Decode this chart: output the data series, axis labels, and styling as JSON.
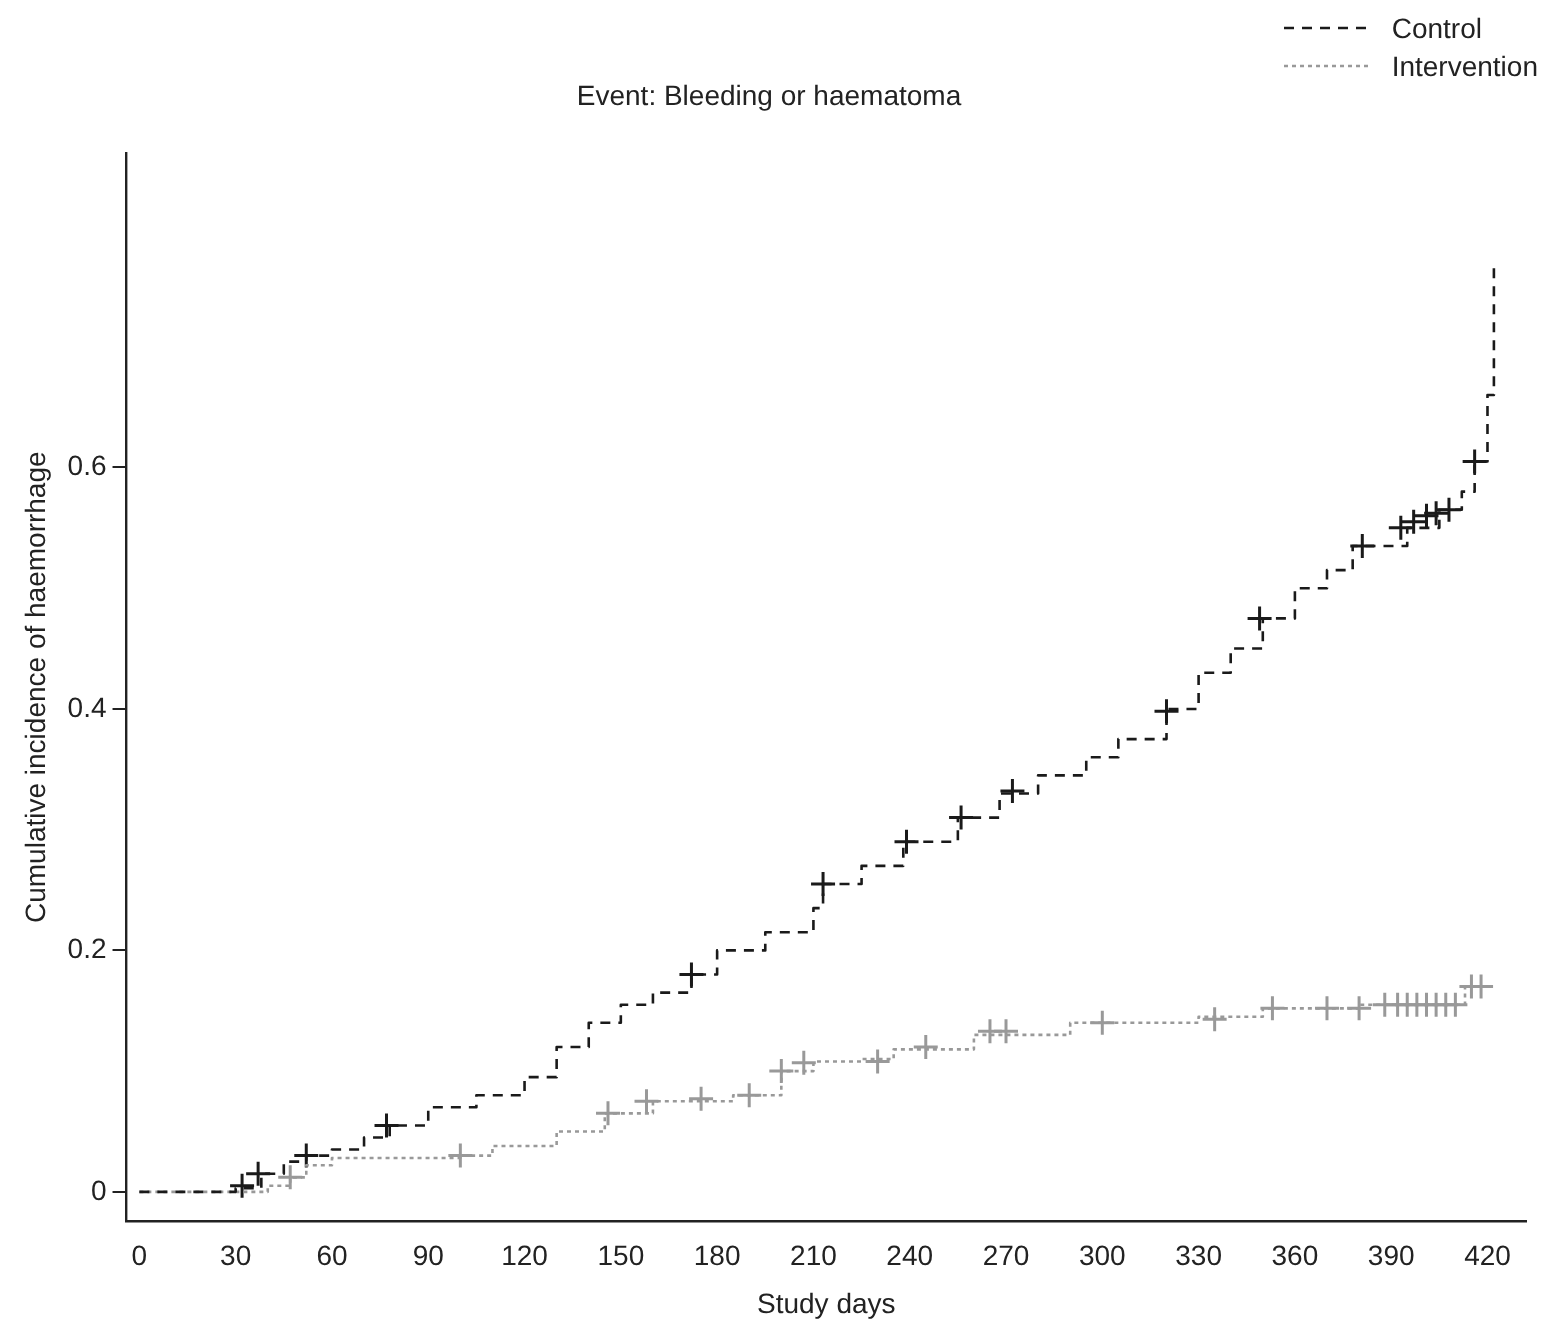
{
  "chart_data": {
    "type": "step",
    "title": "Event: Bleeding or haematoma",
    "xlabel": "Study days",
    "ylabel": "Cumulative incidence of haemorrhage",
    "xlim": [
      -4,
      432
    ],
    "ylim": [
      -0.024,
      0.86
    ],
    "xticks": [
      0,
      30,
      60,
      90,
      120,
      150,
      180,
      210,
      240,
      270,
      300,
      330,
      360,
      390,
      420
    ],
    "yticks": [
      0,
      0.2,
      0.4,
      0.6
    ],
    "grid": false,
    "legend": "top right",
    "series": [
      {
        "name": "Control",
        "color": "#1a1a1a",
        "line_style": "dashed",
        "marker": "none",
        "x": [
          0,
          30,
          38,
          45,
          52,
          60,
          70,
          78,
          90,
          105,
          120,
          130,
          140,
          150,
          160,
          172,
          180,
          195,
          210,
          213,
          225,
          238,
          255,
          268,
          280,
          295,
          305,
          320,
          330,
          340,
          350,
          360,
          370,
          378,
          395,
          405,
          412,
          416,
          420,
          422
        ],
        "values": [
          0,
          0.003,
          0.015,
          0.025,
          0.03,
          0.035,
          0.045,
          0.055,
          0.07,
          0.08,
          0.095,
          0.12,
          0.14,
          0.155,
          0.165,
          0.18,
          0.2,
          0.215,
          0.235,
          0.255,
          0.27,
          0.29,
          0.31,
          0.33,
          0.345,
          0.36,
          0.375,
          0.4,
          0.43,
          0.45,
          0.475,
          0.5,
          0.515,
          0.535,
          0.55,
          0.565,
          0.58,
          0.605,
          0.66,
          0.765
        ]
      },
      {
        "name": "Intervention",
        "color": "#999999",
        "line_style": "dotted",
        "marker": "none",
        "x": [
          0,
          40,
          47,
          52,
          60,
          100,
          110,
          130,
          145,
          160,
          185,
          200,
          210,
          225,
          235,
          260,
          290,
          330,
          350,
          380,
          413,
          420
        ],
        "values": [
          0,
          0.005,
          0.012,
          0.022,
          0.028,
          0.03,
          0.038,
          0.05,
          0.065,
          0.075,
          0.08,
          0.1,
          0.108,
          0.11,
          0.118,
          0.13,
          0.14,
          0.145,
          0.152,
          0.155,
          0.17,
          0.17
        ]
      },
      {
        "type": "scatter",
        "color": "#1a1a1a",
        "marker": "cross",
        "x": [
          32,
          37,
          52,
          77,
          172,
          213,
          239,
          256,
          272,
          320,
          349,
          381,
          393,
          397,
          401,
          404,
          408,
          416
        ],
        "values": [
          0.005,
          0.015,
          0.03,
          0.055,
          0.18,
          0.255,
          0.29,
          0.31,
          0.332,
          0.398,
          0.475,
          0.535,
          0.55,
          0.555,
          0.56,
          0.562,
          0.565,
          0.605
        ]
      },
      {
        "type": "scatter",
        "color": "#999999",
        "marker": "cross",
        "x": [
          47,
          100,
          146,
          158,
          175,
          190,
          200,
          207,
          230,
          245,
          265,
          270,
          300,
          335,
          353,
          370,
          380,
          388,
          392,
          395,
          398,
          401,
          404,
          407,
          410,
          415,
          418
        ],
        "values": [
          0.012,
          0.03,
          0.065,
          0.075,
          0.077,
          0.08,
          0.1,
          0.107,
          0.108,
          0.12,
          0.133,
          0.133,
          0.14,
          0.143,
          0.152,
          0.152,
          0.152,
          0.155,
          0.155,
          0.155,
          0.155,
          0.155,
          0.155,
          0.155,
          0.155,
          0.17,
          0.17
        ]
      }
    ]
  }
}
